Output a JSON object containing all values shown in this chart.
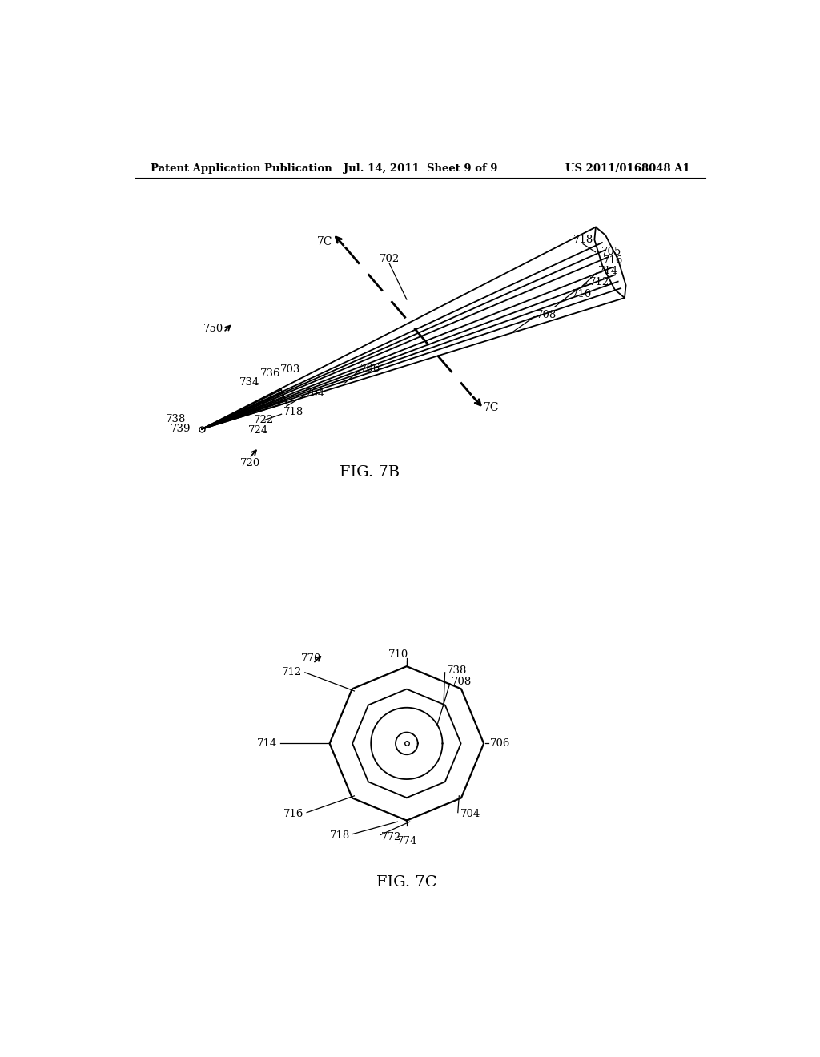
{
  "header_left": "Patent Application Publication",
  "header_mid": "Jul. 14, 2011  Sheet 9 of 9",
  "header_right": "US 2011/0168048 A1",
  "fig7b_label": "FIG. 7B",
  "fig7c_label": "FIG. 7C",
  "bg_color": "#ffffff",
  "line_color": "#000000"
}
